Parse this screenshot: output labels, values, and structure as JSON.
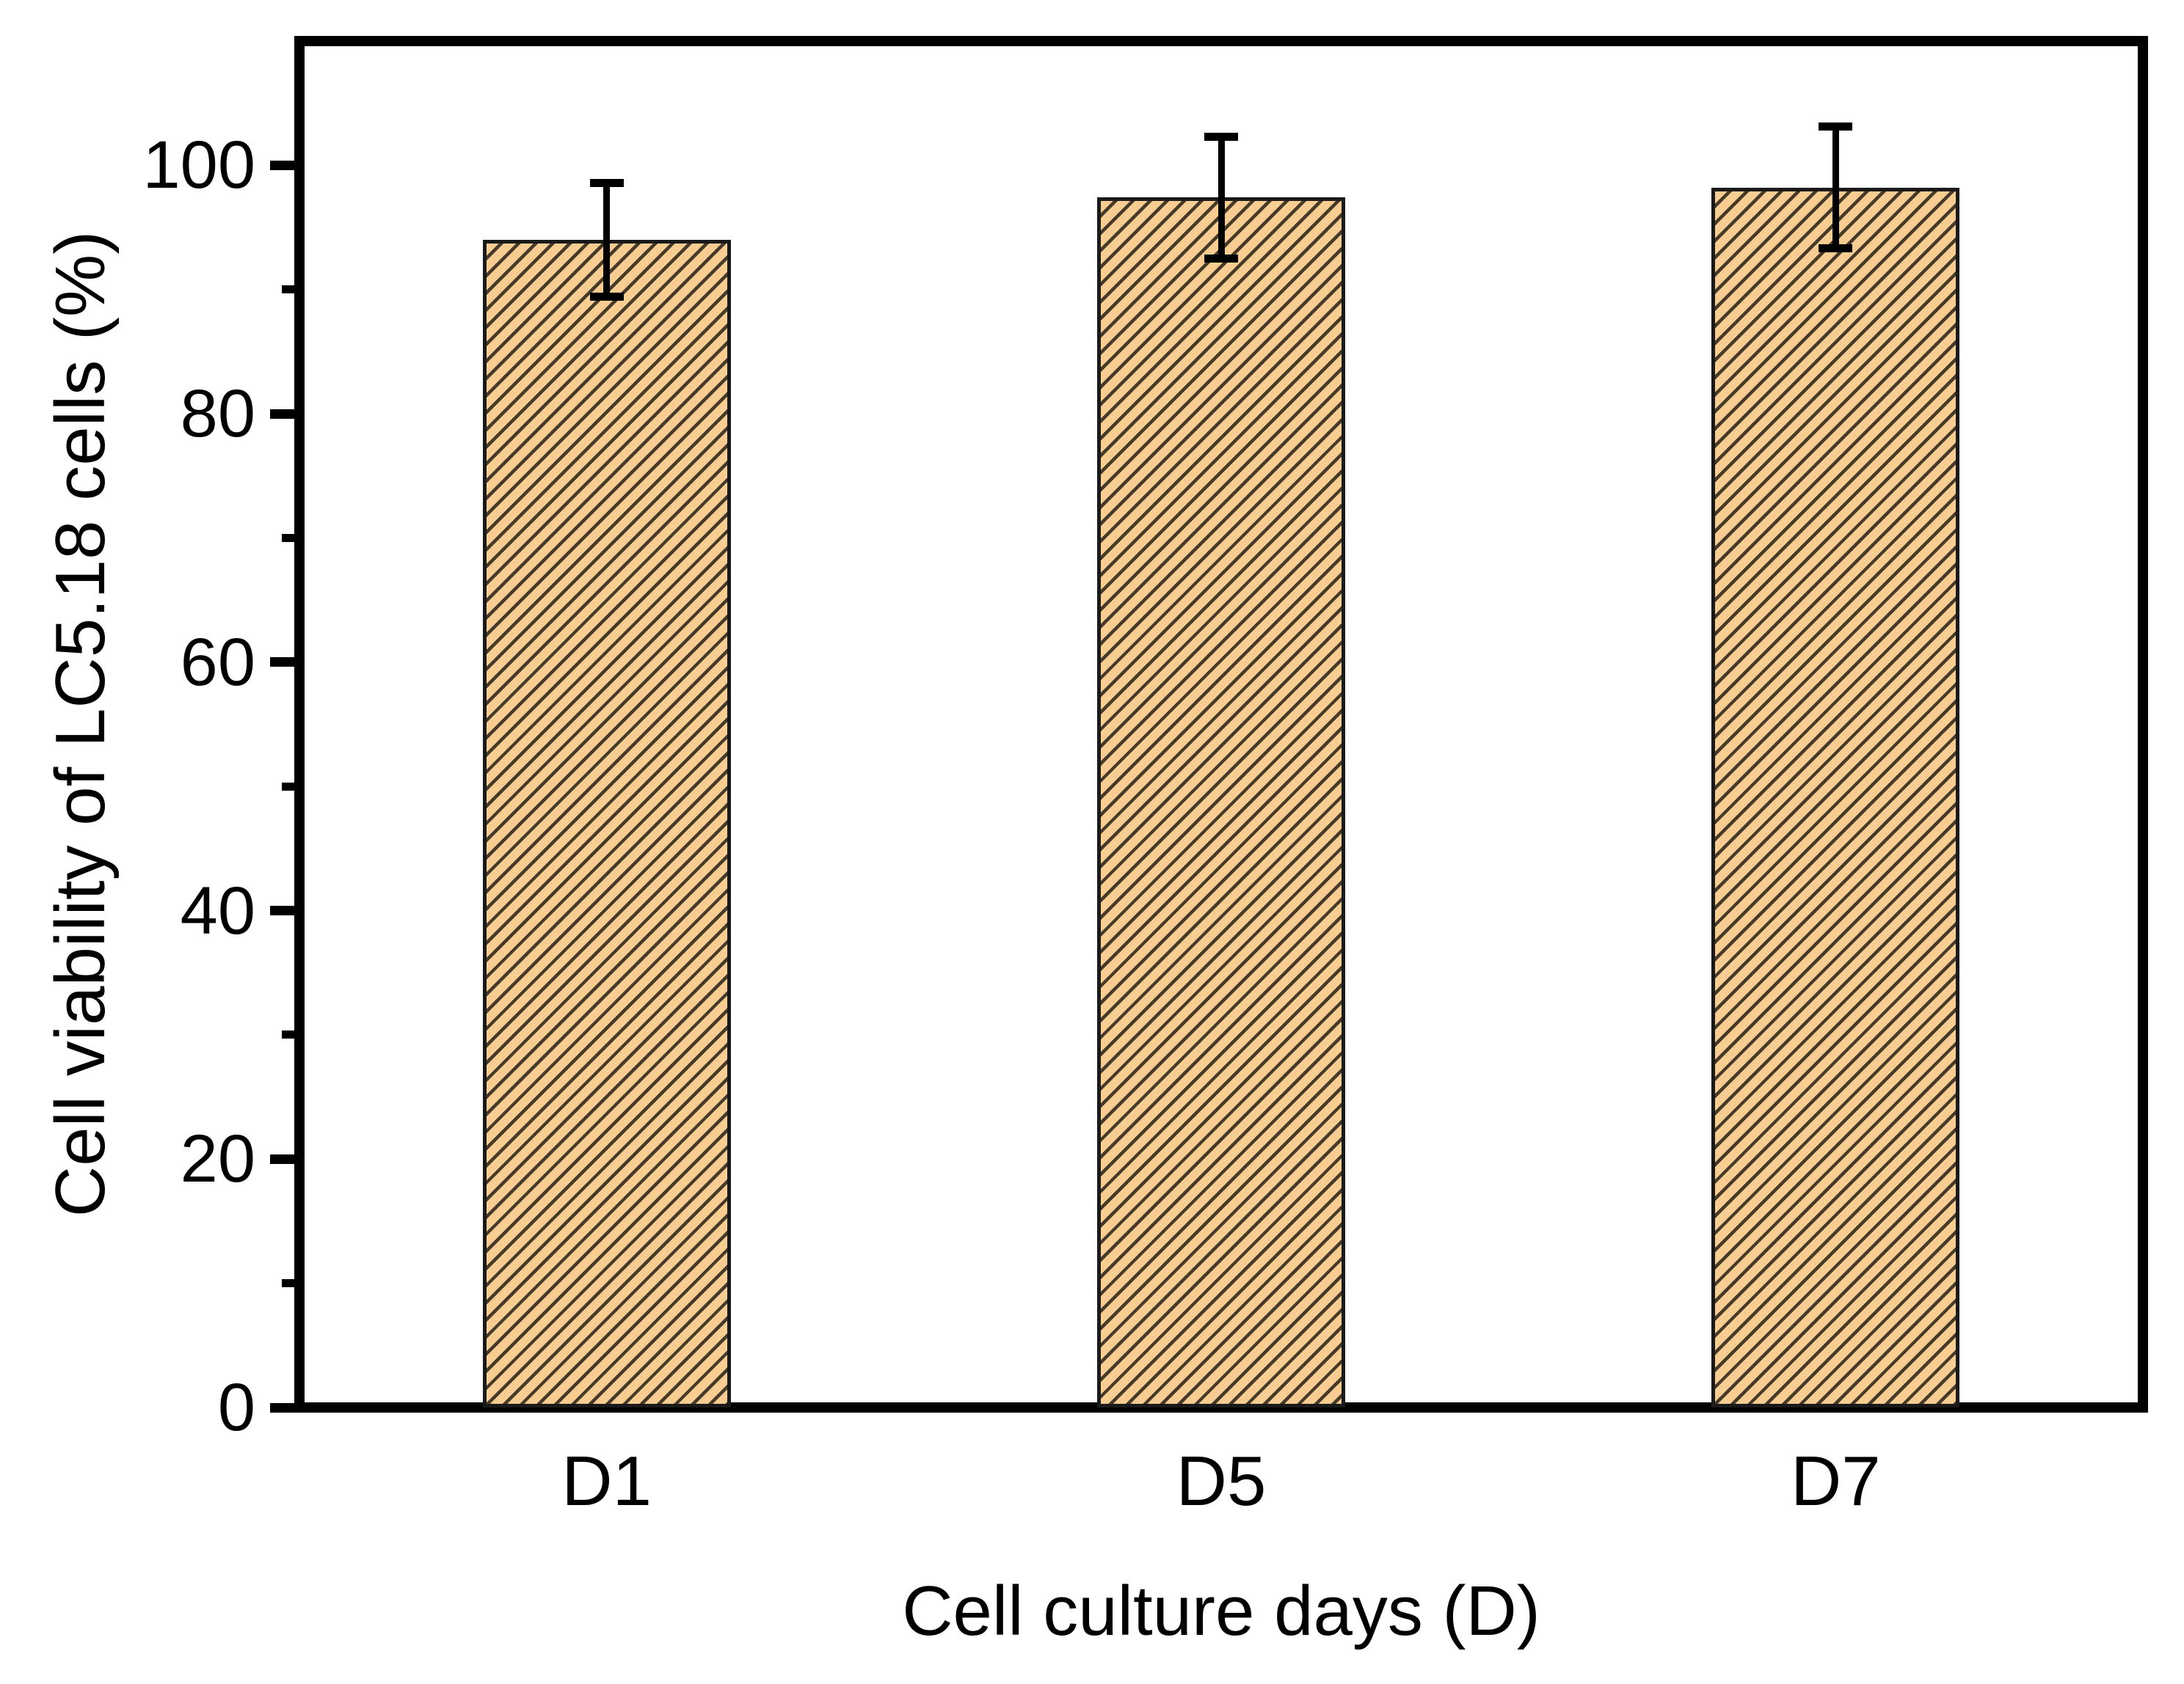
{
  "figure": {
    "background_color": "#ffffff",
    "frame_color": "#000000"
  },
  "chart_data": {
    "type": "bar",
    "title": "",
    "categories": [
      "D1",
      "D5",
      "D7"
    ],
    "values": [
      94.0,
      97.4,
      98.2
    ],
    "errors": [
      4.6,
      4.9,
      4.9
    ],
    "xlabel": "Cell culture days (D)",
    "ylabel": "Cell viability of LC5.18 cells (%)",
    "ylim": [
      0,
      110
    ],
    "y_ticks_major": [
      0,
      20,
      40,
      60,
      80,
      100
    ],
    "y_ticks_minor": [
      10,
      30,
      50,
      70,
      90
    ],
    "y_tick_labels": [
      "0",
      "20",
      "40",
      "60",
      "80",
      "100"
    ],
    "grid": "off",
    "legend": "none",
    "bar_fill_color": "#F8CD92",
    "bar_hatch_color": "#473A28",
    "bar_edge_color": "#1a1a1a",
    "error_bar_color": "#000000",
    "hatch_style": "diagonal-forward-slash"
  }
}
